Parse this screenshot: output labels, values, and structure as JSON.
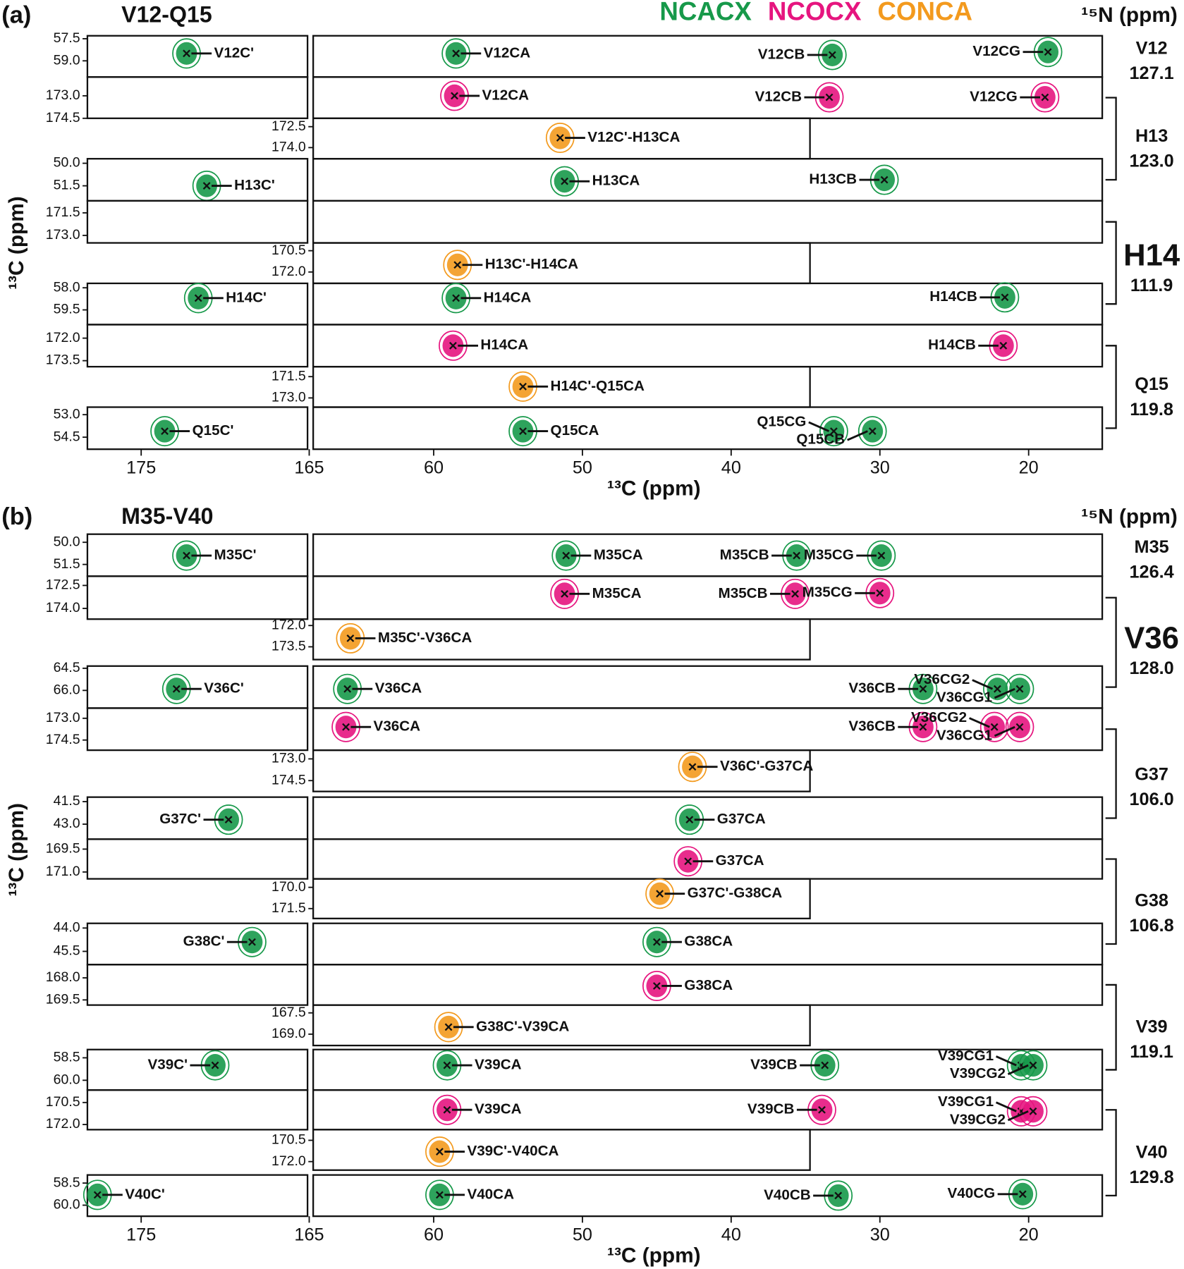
{
  "chart_data": [
    {
      "type": "nmr-strips",
      "panel": "(a)",
      "title": "V12-Q15",
      "n15_label": "¹⁵N (ppm)",
      "xlabel": "¹³C (ppm)",
      "ylabel": "¹³C (ppm)",
      "legend": [
        {
          "name": "NCACX",
          "color": "#17994a"
        },
        {
          "name": "NCOCX",
          "color": "#e6157f"
        },
        {
          "name": "CONCA",
          "color": "#f39a1e"
        }
      ],
      "xlim_c": [
        178.2,
        165.1
      ],
      "xticks_c": [
        175,
        165
      ],
      "xlim": [
        68.1,
        15.05
      ],
      "xticks": [
        60,
        50,
        40,
        30,
        20
      ],
      "residues": [
        {
          "name": "V12",
          "n15": "127.1"
        },
        {
          "name": "H13",
          "n15": "123.0"
        },
        {
          "name": "H14",
          "n15": "111.9",
          "highlight": true
        },
        {
          "name": "Q15",
          "n15": "119.8"
        }
      ],
      "strips": [
        {
          "kind": "NCACX",
          "color": "#17994a",
          "carbonyl": true,
          "ylim": [
            57.3,
            60.1
          ],
          "yticks": [
            57.5,
            {
              "value": 59.0,
              "label": "59.0"
            }
          ],
          "peaks": [
            {
              "name": "V12C'",
              "x": 172.3,
              "y": 58.5
            },
            {
              "name": "V12CA",
              "x": 58.5,
              "y": 58.5
            },
            {
              "name": "V12CB",
              "x": 33.2,
              "y": 58.6
            },
            {
              "name": "V12CG",
              "x": 18.7,
              "y": 58.4
            }
          ]
        },
        {
          "kind": "NCOCX",
          "color": "#e6157f",
          "carbonyl": true,
          "ylim": [
            171.75,
            174.5
          ],
          "yticks": [
            {
              "value": 173.0,
              "label": "173.0"
            },
            174.5
          ],
          "peaks": [
            {
              "name": "V12CA",
              "x": 58.6,
              "y": 173.0
            },
            {
              "name": "V12CB",
              "x": 33.4,
              "y": 173.1
            },
            {
              "name": "V12CG",
              "x": 18.9,
              "y": 173.1
            }
          ]
        },
        {
          "kind": "CONCA",
          "color": "#f39a1e",
          "xlim": [
            68.1,
            34.7
          ],
          "ylim": [
            171.9,
            174.8
          ],
          "yticks": [
            172.5,
            {
              "value": 174.0,
              "label": "174.0"
            }
          ],
          "peaks": [
            {
              "name": "V12C'-H13CA",
              "x": 51.5,
              "y": 173.3
            }
          ]
        },
        {
          "kind": "NCACX",
          "color": "#17994a",
          "carbonyl": true,
          "ylim": [
            49.7,
            52.5
          ],
          "yticks": [
            {
              "value": 50.0,
              "label": "50.0"
            },
            51.5
          ],
          "peaks": [
            {
              "name": "H13C'",
              "x": 171.1,
              "y": 51.5
            },
            {
              "name": "H13CA",
              "x": 51.2,
              "y": 51.2
            },
            {
              "name": "H13CB",
              "x": 29.7,
              "y": 51.1
            }
          ]
        },
        {
          "kind": "NCOCX",
          "color": "#e6157f",
          "carbonyl": true,
          "ylim": [
            170.7,
            173.5
          ],
          "yticks": [
            171.5,
            {
              "value": 173.0,
              "label": "173.0"
            }
          ],
          "peaks": []
        },
        {
          "kind": "CONCA",
          "color": "#f39a1e",
          "xlim": [
            68.1,
            34.7
          ],
          "ylim": [
            169.95,
            172.8
          ],
          "yticks": [
            170.5,
            {
              "value": 172.0,
              "label": "172.0"
            }
          ],
          "peaks": [
            {
              "name": "H13C'-H14CA",
              "x": 58.4,
              "y": 171.5
            }
          ]
        },
        {
          "kind": "NCACX",
          "color": "#17994a",
          "carbonyl": true,
          "ylim": [
            57.7,
            60.5
          ],
          "yticks": [
            {
              "value": 58.0,
              "label": "58.0"
            },
            59.5
          ],
          "peaks": [
            {
              "name": "H14C'",
              "x": 171.6,
              "y": 58.7
            },
            {
              "name": "H14CA",
              "x": 58.5,
              "y": 58.7
            },
            {
              "name": "H14CB",
              "x": 21.6,
              "y": 58.65
            }
          ]
        },
        {
          "kind": "NCOCX",
          "color": "#e6157f",
          "carbonyl": true,
          "ylim": [
            171.1,
            173.9
          ],
          "yticks": [
            {
              "value": 172.0,
              "label": "172.0"
            },
            173.5
          ],
          "peaks": [
            {
              "name": "H14CA",
              "x": 58.7,
              "y": 172.5
            },
            {
              "name": "H14CB",
              "x": 21.7,
              "y": 172.5
            }
          ]
        },
        {
          "kind": "CONCA",
          "color": "#f39a1e",
          "xlim": [
            68.1,
            34.7
          ],
          "ylim": [
            170.8,
            173.65
          ],
          "yticks": [
            171.5,
            {
              "value": 173.0,
              "label": "173.0"
            }
          ],
          "peaks": [
            {
              "name": "H14C'-Q15CA",
              "x": 54.0,
              "y": 172.2
            }
          ]
        },
        {
          "kind": "NCACX",
          "color": "#17994a",
          "carbonyl": true,
          "ylim": [
            52.5,
            55.3
          ],
          "yticks": [
            {
              "value": 53.0,
              "label": "53.0"
            },
            54.5
          ],
          "peaks": [
            {
              "name": "Q15C'",
              "x": 173.6,
              "y": 54.1
            },
            {
              "name": "Q15CA",
              "x": 54.0,
              "y": 54.1
            },
            {
              "name": "Q15CG",
              "x": 33.1,
              "y": 54.1
            },
            {
              "name": "Q15CB",
              "x": 30.5,
              "y": 54.1
            }
          ]
        }
      ]
    },
    {
      "type": "nmr-strips",
      "panel": "(b)",
      "title": "M35-V40",
      "n15_label": "¹⁵N (ppm)",
      "xlabel": "¹³C (ppm)",
      "ylabel": "¹³C (ppm)",
      "xlim_c": [
        178.2,
        165.1
      ],
      "xticks_c": [
        175,
        165
      ],
      "xlim": [
        68.1,
        15.05
      ],
      "xticks": [
        60,
        50,
        40,
        30,
        20
      ],
      "residues": [
        {
          "name": "M35",
          "n15": "126.4"
        },
        {
          "name": "V36",
          "n15": "128.0",
          "highlight": true
        },
        {
          "name": "G37",
          "n15": "106.0"
        },
        {
          "name": "G38",
          "n15": "106.8"
        },
        {
          "name": "V39",
          "n15": "119.1"
        },
        {
          "name": "V40",
          "n15": "129.8"
        }
      ],
      "strips": [
        {
          "kind": "NCACX",
          "color": "#17994a",
          "carbonyl": true,
          "ylim": [
            49.45,
            52.3
          ],
          "yticks": [
            {
              "value": 50.0,
              "label": "50.0"
            },
            51.5
          ],
          "peaks": [
            {
              "name": "M35C'",
              "x": 172.3,
              "y": 50.9
            },
            {
              "name": "M35CA",
              "x": 51.1,
              "y": 50.9
            },
            {
              "name": "M35CB",
              "x": 35.6,
              "y": 50.9
            },
            {
              "name": "M35CG",
              "x": 29.9,
              "y": 50.9
            }
          ]
        },
        {
          "kind": "NCOCX",
          "color": "#e6157f",
          "carbonyl": true,
          "ylim": [
            171.9,
            174.7
          ],
          "yticks": [
            172.5,
            {
              "value": 174.0,
              "label": "174.0"
            }
          ],
          "peaks": [
            {
              "name": "M35CA",
              "x": 51.2,
              "y": 173.05
            },
            {
              "name": "M35CB",
              "x": 35.7,
              "y": 173.05
            },
            {
              "name": "M35CG",
              "x": 30.0,
              "y": 173.0
            }
          ]
        },
        {
          "kind": "CONCA",
          "color": "#f39a1e",
          "xlim": [
            68.1,
            34.7
          ],
          "ylim": [
            171.55,
            174.4
          ],
          "yticks": [
            {
              "value": 172.0,
              "label": "172.0"
            },
            173.5
          ],
          "peaks": [
            {
              "name": "M35C'-V36CA",
              "x": 65.6,
              "y": 172.9
            }
          ]
        },
        {
          "kind": "NCACX",
          "color": "#17994a",
          "carbonyl": true,
          "ylim": [
            64.35,
            67.2
          ],
          "yticks": [
            64.5,
            {
              "value": 66.0,
              "label": "66.0"
            }
          ],
          "peaks": [
            {
              "name": "V36C'",
              "x": 172.9,
              "y": 65.9
            },
            {
              "name": "V36CA",
              "x": 65.8,
              "y": 65.9
            },
            {
              "name": "V36CB",
              "x": 27.1,
              "y": 65.9
            },
            {
              "name": "V36CG2",
              "x": 22.1,
              "y": 65.9
            },
            {
              "name": "V36CG1",
              "x": 20.6,
              "y": 65.9
            }
          ]
        },
        {
          "kind": "NCOCX",
          "color": "#e6157f",
          "carbonyl": true,
          "ylim": [
            172.3,
            175.2
          ],
          "yticks": [
            {
              "value": 173.0,
              "label": "173.0"
            },
            174.5
          ],
          "peaks": [
            {
              "name": "V36CA",
              "x": 65.9,
              "y": 173.6
            },
            {
              "name": "V36CB",
              "x": 27.1,
              "y": 173.6
            },
            {
              "name": "V36CG2",
              "x": 22.3,
              "y": 173.6
            },
            {
              "name": "V36CG1",
              "x": 20.6,
              "y": 173.6
            }
          ]
        },
        {
          "kind": "CONCA",
          "color": "#f39a1e",
          "xlim": [
            68.1,
            34.7
          ],
          "ylim": [
            172.4,
            175.25
          ],
          "yticks": [
            {
              "value": 173.0,
              "label": "173.0"
            },
            174.5
          ],
          "peaks": [
            {
              "name": "V36C'-G37CA",
              "x": 42.6,
              "y": 173.55
            }
          ]
        },
        {
          "kind": "NCACX",
          "color": "#17994a",
          "carbonyl": true,
          "ylim": [
            41.2,
            44.0
          ],
          "yticks": [
            41.5,
            {
              "value": 43.0,
              "label": "43.0"
            }
          ],
          "peaks": [
            {
              "name": "G37C'",
              "x": 169.8,
              "y": 42.7
            },
            {
              "name": "G37CA",
              "x": 42.8,
              "y": 42.7
            }
          ]
        },
        {
          "kind": "NCOCX",
          "color": "#e6157f",
          "carbonyl": true,
          "ylim": [
            168.85,
            171.45
          ],
          "yticks": [
            169.5,
            {
              "value": 171.0,
              "label": "171.0"
            }
          ],
          "peaks": [
            {
              "name": "G37CA",
              "x": 42.9,
              "y": 170.3
            }
          ]
        },
        {
          "kind": "CONCA",
          "color": "#f39a1e",
          "xlim": [
            68.1,
            34.7
          ],
          "ylim": [
            169.4,
            172.2
          ],
          "yticks": [
            {
              "value": 170.0,
              "label": "170.0"
            },
            171.5
          ],
          "peaks": [
            {
              "name": "G37C'-G38CA",
              "x": 44.8,
              "y": 170.45
            }
          ]
        },
        {
          "kind": "NCACX",
          "color": "#17994a",
          "carbonyl": true,
          "ylim": [
            43.7,
            46.35
          ],
          "yticks": [
            {
              "value": 44.0,
              "label": "44.0"
            },
            45.5
          ],
          "peaks": [
            {
              "name": "G38C'",
              "x": 168.4,
              "y": 44.9
            },
            {
              "name": "G38CA",
              "x": 45.0,
              "y": 44.9
            }
          ]
        },
        {
          "kind": "NCOCX",
          "color": "#e6157f",
          "carbonyl": true,
          "ylim": [
            167.1,
            169.85
          ],
          "yticks": [
            {
              "value": 168.0,
              "label": "168.0"
            },
            169.5
          ],
          "peaks": [
            {
              "name": "G38CA",
              "x": 45.0,
              "y": 168.55
            }
          ]
        },
        {
          "kind": "CONCA",
          "color": "#f39a1e",
          "xlim": [
            68.1,
            34.7
          ],
          "ylim": [
            166.95,
            169.8
          ],
          "yticks": [
            167.5,
            {
              "value": 169.0,
              "label": "169.0"
            }
          ],
          "peaks": [
            {
              "name": "G38C'-V39CA",
              "x": 59.0,
              "y": 168.5
            }
          ]
        },
        {
          "kind": "NCACX",
          "color": "#17994a",
          "carbonyl": true,
          "ylim": [
            57.95,
            60.65
          ],
          "yticks": [
            58.5,
            {
              "value": 60.0,
              "label": "60.0"
            }
          ],
          "peaks": [
            {
              "name": "V39C'",
              "x": 170.6,
              "y": 59.0
            },
            {
              "name": "V39CA",
              "x": 59.1,
              "y": 59.0
            },
            {
              "name": "V39CB",
              "x": 33.7,
              "y": 59.0
            },
            {
              "name": "V39CG1",
              "x": 20.5,
              "y": 59.0
            },
            {
              "name": "V39CG2",
              "x": 19.7,
              "y": 59.0
            }
          ]
        },
        {
          "kind": "NCOCX",
          "color": "#e6157f",
          "carbonyl": true,
          "ylim": [
            169.65,
            172.35
          ],
          "yticks": [
            170.5,
            {
              "value": 172.0,
              "label": "172.0"
            }
          ],
          "peaks": [
            {
              "name": "V39CA",
              "x": 59.1,
              "y": 171.0
            },
            {
              "name": "V39CB",
              "x": 33.9,
              "y": 171.0
            },
            {
              "name": "V39CG1",
              "x": 20.5,
              "y": 171.1
            },
            {
              "name": "V39CG2",
              "x": 19.7,
              "y": 171.1
            }
          ]
        },
        {
          "kind": "CONCA",
          "color": "#f39a1e",
          "xlim": [
            68.1,
            34.7
          ],
          "ylim": [
            169.75,
            172.6
          ],
          "yticks": [
            170.5,
            {
              "value": 172.0,
              "label": "172.0"
            }
          ],
          "peaks": [
            {
              "name": "V39C'-V40CA",
              "x": 59.6,
              "y": 171.3
            }
          ]
        },
        {
          "kind": "NCACX",
          "color": "#17994a",
          "carbonyl": true,
          "ylim": [
            57.95,
            60.75
          ],
          "yticks": [
            58.5,
            {
              "value": 60.0,
              "label": "60.0"
            }
          ],
          "peaks": [
            {
              "name": "V40C'",
              "x": 177.6,
              "y": 59.3
            },
            {
              "name": "V40CA",
              "x": 59.6,
              "y": 59.3
            },
            {
              "name": "V40CB",
              "x": 32.8,
              "y": 59.35
            },
            {
              "name": "V40CG",
              "x": 20.4,
              "y": 59.25
            }
          ]
        }
      ]
    }
  ]
}
